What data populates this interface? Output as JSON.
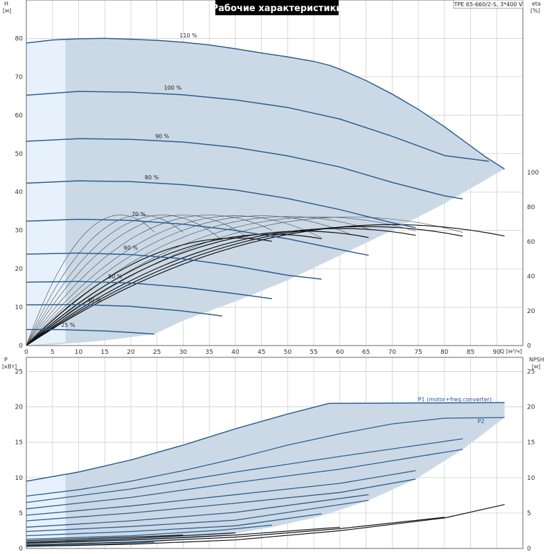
{
  "title": "Рабочие характеристики",
  "model": "TPE 65-660/2-S, 3*400 V",
  "colors": {
    "envelope": "#cbd9e6",
    "light_zone": "#e6f1fb",
    "speed_curve": "#2a5d8f",
    "thin_curve": "#444444",
    "dark_curve": "#111111",
    "grid": "#cfcfcf",
    "title_bg": "#000000"
  },
  "chart_data": [
    {
      "type": "line",
      "name_id": "qh",
      "ylabel": "H",
      "yunit": "[м]",
      "y2label": "eta",
      "y2unit": "[%]",
      "xlabel": "Q [м³/ч]",
      "xlim": [
        0,
        95
      ],
      "ylim": [
        0,
        90
      ],
      "y2ticks": [
        0,
        20,
        40,
        60,
        80,
        100
      ],
      "xticks": [
        0,
        5,
        10,
        15,
        20,
        25,
        30,
        35,
        40,
        45,
        50,
        55,
        60,
        65,
        70,
        75,
        80,
        85,
        90
      ],
      "yticks": [
        0,
        10,
        20,
        30,
        40,
        50,
        60,
        70,
        80
      ],
      "grid": true,
      "speed_curves": [
        {
          "label": "110 %",
          "label_at": [
            31,
            80.3
          ],
          "points": [
            [
              0,
              78.8
            ],
            [
              5,
              79.6
            ],
            [
              10,
              79.9
            ],
            [
              15,
              80.0
            ],
            [
              20,
              79.8
            ],
            [
              25,
              79.5
            ],
            [
              30,
              79.0
            ],
            [
              35,
              78.3
            ],
            [
              40,
              77.3
            ],
            [
              45,
              76.2
            ],
            [
              50,
              75.2
            ],
            [
              55,
              74.0
            ],
            [
              58,
              73.0
            ],
            [
              60,
              72.0
            ],
            [
              65,
              69.0
            ],
            [
              70,
              65.5
            ],
            [
              75,
              61.5
            ],
            [
              80,
              57.0
            ],
            [
              85,
              52.0
            ],
            [
              88,
              49.0
            ],
            [
              91.5,
              46.0
            ]
          ]
        },
        {
          "label": "100 %",
          "label_at": [
            28,
            66.6
          ],
          "points": [
            [
              0,
              65.2
            ],
            [
              10,
              66.2
            ],
            [
              20,
              66.0
            ],
            [
              30,
              65.3
            ],
            [
              40,
              64.0
            ],
            [
              50,
              62.0
            ],
            [
              60,
              59.0
            ],
            [
              70,
              54.5
            ],
            [
              80,
              49.5
            ],
            [
              88.5,
              48.0
            ]
          ]
        },
        {
          "label": "90 %",
          "label_at": [
            26,
            54.0
          ],
          "points": [
            [
              0,
              53.2
            ],
            [
              10,
              53.9
            ],
            [
              20,
              53.7
            ],
            [
              30,
              53.0
            ],
            [
              40,
              51.6
            ],
            [
              50,
              49.4
            ],
            [
              60,
              46.5
            ],
            [
              70,
              42.5
            ],
            [
              80,
              39.0
            ],
            [
              83.5,
              38.2
            ]
          ]
        },
        {
          "label": "80 %",
          "label_at": [
            24,
            43.3
          ],
          "points": [
            [
              0,
              42.3
            ],
            [
              10,
              42.9
            ],
            [
              20,
              42.7
            ],
            [
              30,
              41.9
            ],
            [
              40,
              40.5
            ],
            [
              50,
              38.3
            ],
            [
              60,
              35.4
            ],
            [
              70,
              32.0
            ],
            [
              74.5,
              30.7
            ]
          ]
        },
        {
          "label": "70 %",
          "label_at": [
            21.5,
            33.7
          ],
          "points": [
            [
              0,
              32.4
            ],
            [
              10,
              32.9
            ],
            [
              20,
              32.6
            ],
            [
              30,
              31.6
            ],
            [
              40,
              30.0
            ],
            [
              50,
              27.8
            ],
            [
              60,
              25.0
            ],
            [
              65.5,
              23.5
            ]
          ]
        },
        {
          "label": "60 %",
          "label_at": [
            20,
            25.0
          ],
          "points": [
            [
              0,
              23.8
            ],
            [
              10,
              24.1
            ],
            [
              20,
              23.7
            ],
            [
              30,
              22.6
            ],
            [
              40,
              20.7
            ],
            [
              50,
              18.3
            ],
            [
              56.5,
              17.3
            ]
          ]
        },
        {
          "label": "50 %",
          "label_at": [
            17,
            17.5
          ],
          "points": [
            [
              0,
              16.5
            ],
            [
              10,
              16.7
            ],
            [
              20,
              16.3
            ],
            [
              30,
              15.2
            ],
            [
              40,
              13.5
            ],
            [
              47,
              12.2
            ]
          ]
        },
        {
          "label": "40 %",
          "label_at": [
            13,
            11.3
          ],
          "points": [
            [
              0,
              10.6
            ],
            [
              10,
              10.7
            ],
            [
              20,
              10.2
            ],
            [
              30,
              9.0
            ],
            [
              37.5,
              7.7
            ]
          ]
        },
        {
          "label": "25 %",
          "label_at": [
            8,
            4.9
          ],
          "points": [
            [
              0,
              4.2
            ],
            [
              5,
              4.2
            ],
            [
              10,
              4.0
            ],
            [
              15,
              3.8
            ],
            [
              20,
              3.4
            ],
            [
              24.5,
              3.0
            ]
          ]
        }
      ],
      "envelope_upper": [
        [
          0,
          78.8
        ],
        [
          10,
          79.9
        ],
        [
          20,
          79.8
        ],
        [
          30,
          79.0
        ],
        [
          40,
          77.3
        ],
        [
          50,
          75.2
        ],
        [
          58,
          73.0
        ],
        [
          60,
          72.0
        ],
        [
          70,
          65.5
        ],
        [
          80,
          57.0
        ],
        [
          88,
          49.0
        ],
        [
          91.5,
          46.0
        ]
      ],
      "envelope_lower": [
        [
          91.5,
          46.0
        ],
        [
          80,
          37.0
        ],
        [
          70,
          30.0
        ],
        [
          60,
          23.5
        ],
        [
          50,
          17.0
        ],
        [
          40,
          11.5
        ],
        [
          30,
          6.5
        ],
        [
          24.5,
          3.0
        ],
        [
          15,
          1.3
        ],
        [
          5,
          0.2
        ],
        [
          0,
          0
        ]
      ],
      "light_zone": [
        [
          0,
          78.8
        ],
        [
          7.5,
          79.7
        ],
        [
          7.5,
          0.9
        ],
        [
          0,
          0
        ]
      ],
      "efficiency_curves_thin": [
        {
          "peak_q": 18,
          "peak": 34.0,
          "end_q": 24.5
        },
        {
          "peak_q": 22,
          "peak": 34.0,
          "end_q": 30
        },
        {
          "peak_q": 26,
          "peak": 34.0,
          "end_q": 37.5
        },
        {
          "peak_q": 30,
          "peak": 34.0,
          "end_q": 43
        },
        {
          "peak_q": 35,
          "peak": 34.0,
          "end_q": 47
        },
        {
          "peak_q": 40,
          "peak": 33.8,
          "end_q": 56.5
        },
        {
          "peak_q": 45,
          "peak": 33.8,
          "end_q": 62
        },
        {
          "peak_q": 50,
          "peak": 33.6,
          "end_q": 65.5
        },
        {
          "peak_q": 56,
          "peak": 33.5,
          "end_q": 74.5
        },
        {
          "peak_q": 62,
          "peak": 33.5,
          "end_q": 83.5
        }
      ],
      "efficiency_curves_thick": [
        {
          "peak_q": 40,
          "peak": 28.0,
          "end_q": 47
        },
        {
          "peak_q": 47,
          "peak": 29.0,
          "end_q": 56.5
        },
        {
          "peak_q": 53,
          "peak": 29.8,
          "end_q": 65.5
        },
        {
          "peak_q": 60,
          "peak": 30.5,
          "end_q": 74.5
        },
        {
          "peak_q": 65,
          "peak": 31.0,
          "end_q": 83.5
        },
        {
          "peak_q": 70,
          "peak": 31.5,
          "end_q": 91.5
        }
      ]
    },
    {
      "type": "line",
      "name_id": "power",
      "ylabel": "P",
      "yunit": "[кВт]",
      "y2label": "NPSH",
      "y2unit": "[м]",
      "xlim": [
        0,
        95
      ],
      "ylim": [
        0,
        27
      ],
      "yticks": [
        0,
        5,
        10,
        15,
        20,
        25
      ],
      "y2ticks": [
        0,
        5,
        10,
        15,
        20,
        25
      ],
      "grid": true,
      "p1_label": "P1 (motor+freq.converter)",
      "p2_label": "P2",
      "p1_label_at": [
        82,
        20.8
      ],
      "p2_label_at": [
        87,
        17.7
      ],
      "envelope_upper": [
        [
          0,
          9.5
        ],
        [
          10,
          10.8
        ],
        [
          20,
          12.5
        ],
        [
          30,
          14.6
        ],
        [
          40,
          16.9
        ],
        [
          50,
          19.0
        ],
        [
          58,
          20.5
        ],
        [
          60,
          20.5
        ],
        [
          91.5,
          20.6
        ]
      ],
      "envelope_lower": [
        [
          91.5,
          18.5
        ],
        [
          83.5,
          14.0
        ],
        [
          74.5,
          9.8
        ],
        [
          65.5,
          6.8
        ],
        [
          56.5,
          4.6
        ],
        [
          47,
          3.0
        ],
        [
          37.5,
          1.8
        ],
        [
          24.5,
          0.9
        ],
        [
          10,
          0.3
        ],
        [
          0,
          0.1
        ]
      ],
      "light_zone": [
        [
          0,
          9.5
        ],
        [
          7.5,
          10.5
        ],
        [
          7.5,
          0.2
        ],
        [
          0,
          0.1
        ]
      ],
      "power_curves": [
        {
          "points": [
            [
              0,
              7.4
            ],
            [
              10,
              8.3
            ],
            [
              20,
              9.5
            ],
            [
              30,
              11.0
            ],
            [
              40,
              12.7
            ],
            [
              50,
              14.6
            ],
            [
              60,
              16.2
            ],
            [
              70,
              17.6
            ],
            [
              80,
              18.4
            ],
            [
              91.5,
              18.5
            ]
          ]
        },
        {
          "points": [
            [
              0,
              6.5
            ],
            [
              20,
              8.4
            ],
            [
              40,
              10.8
            ],
            [
              60,
              13.0
            ],
            [
              83.5,
              15.5
            ]
          ]
        },
        {
          "points": [
            [
              0,
              5.6
            ],
            [
              20,
              7.2
            ],
            [
              40,
              9.3
            ],
            [
              60,
              11.2
            ],
            [
              83.5,
              14.0
            ]
          ]
        },
        {
          "points": [
            [
              0,
              4.7
            ],
            [
              20,
              6.0
            ],
            [
              40,
              7.6
            ],
            [
              60,
              9.2
            ],
            [
              74.5,
              11.0
            ]
          ]
        },
        {
          "points": [
            [
              0,
              3.9
            ],
            [
              20,
              5.0
            ],
            [
              40,
              6.4
            ],
            [
              60,
              7.9
            ],
            [
              74.5,
              9.8
            ]
          ]
        },
        {
          "points": [
            [
              0,
              3.0
            ],
            [
              20,
              3.9
            ],
            [
              40,
              5.1
            ],
            [
              65.5,
              7.6
            ]
          ]
        },
        {
          "points": [
            [
              0,
              2.4
            ],
            [
              20,
              3.1
            ],
            [
              40,
              4.0
            ],
            [
              65.5,
              6.8
            ]
          ]
        },
        {
          "points": [
            [
              0,
              1.8
            ],
            [
              20,
              2.4
            ],
            [
              40,
              3.2
            ],
            [
              56.5,
              4.9
            ]
          ]
        },
        {
          "points": [
            [
              0,
              1.3
            ],
            [
              20,
              1.8
            ],
            [
              37.5,
              2.6
            ],
            [
              47,
              3.3
            ]
          ]
        },
        {
          "points": [
            [
              0,
              0.8
            ],
            [
              20,
              1.2
            ],
            [
              37.5,
              1.8
            ]
          ]
        },
        {
          "points": [
            [
              0,
              0.4
            ],
            [
              15,
              0.6
            ],
            [
              24.5,
              0.9
            ]
          ]
        }
      ],
      "npsh_curves": [
        {
          "points": [
            [
              0,
              0.3
            ],
            [
              20,
              0.6
            ],
            [
              40,
              1.2
            ],
            [
              60,
              2.5
            ],
            [
              80,
              4.3
            ],
            [
              91.5,
              6.2
            ]
          ]
        },
        {
          "points": [
            [
              0,
              0.5
            ],
            [
              20,
              0.9
            ],
            [
              40,
              1.6
            ],
            [
              60,
              2.8
            ],
            [
              80,
              4.4
            ]
          ]
        },
        {
          "points": [
            [
              0,
              0.7
            ],
            [
              20,
              1.2
            ],
            [
              40,
              1.9
            ],
            [
              60,
              3.0
            ]
          ]
        },
        {
          "points": [
            [
              0,
              0.9
            ],
            [
              20,
              1.4
            ],
            [
              40,
              2.2
            ]
          ]
        },
        {
          "points": [
            [
              0,
              1.1
            ],
            [
              20,
              1.6
            ],
            [
              30,
              1.9
            ]
          ]
        }
      ]
    }
  ]
}
